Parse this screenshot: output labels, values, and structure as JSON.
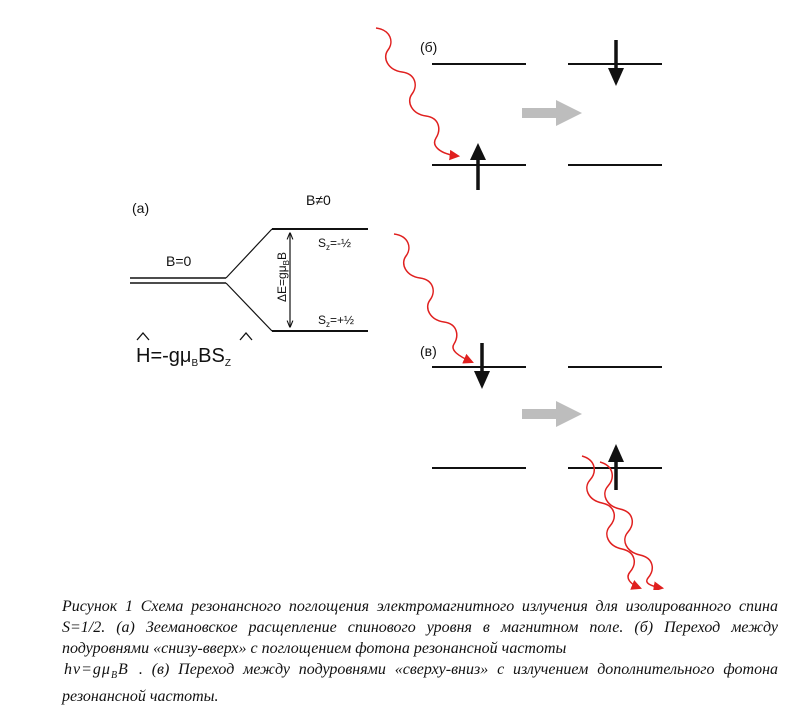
{
  "labels": {
    "panel_a": "(a)",
    "panel_b": "(б)",
    "panel_c": "(в)",
    "b_zero": "B=0",
    "b_nonzero": "B≠0",
    "sz_upper": "S",
    "sz_upper_sub": "z",
    "sz_upper_val": "=-½",
    "sz_lower": "S",
    "sz_lower_sub": "z",
    "sz_lower_val": "=+½",
    "delta_e": "ΔE=gμ",
    "delta_e_sub": "B",
    "delta_e_tail": "B",
    "hamiltonian_h": "H",
    "hamiltonian_mid": "=-gμ",
    "hamiltonian_sub_b": "B",
    "hamiltonian_b": "B",
    "hamiltonian_s": "S",
    "hamiltonian_sub_z": "Z"
  },
  "caption": {
    "part1": "Рисунок 1 Схема резонансного поглощения электромагнитного излучения для изолированного спина S=1/2. (а) Зеемановское расщепление спинового уровня в магнитном поле. (б) Переход между подуровнями «снизу-вверх» с поглощением фотона резонансной частоты",
    "formula": "hν=gμ",
    "formula_sub": "B",
    "formula_tail": "B",
    "part2": ". (в) Переход между подуровнями «сверху-вниз» с излучением дополнительного фотона резонансной частоты."
  },
  "colors": {
    "photon": "#e0201f",
    "level": "#111111",
    "process_arrow": "#bdbdbd"
  },
  "icons": {
    "photon": "wavy-photon-icon",
    "spin_up": "spin-up-arrow-icon",
    "spin_down": "spin-down-arrow-icon",
    "process": "process-arrow-icon"
  }
}
